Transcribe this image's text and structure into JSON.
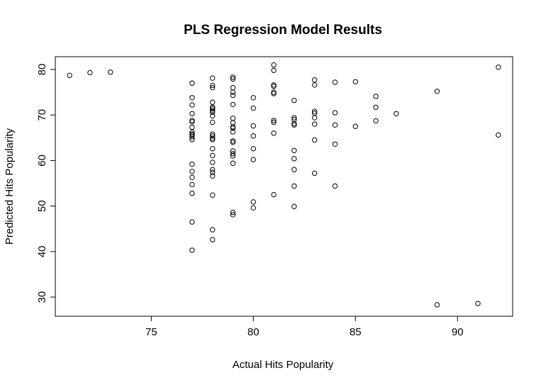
{
  "chart_data": {
    "type": "scatter",
    "title": "PLS Regression Model Results",
    "xlabel": "Actual Hits Popularity",
    "ylabel": "Predicted Hits Popularity",
    "xlim": [
      70.3,
      92.7
    ],
    "ylim": [
      25.8,
      82.8
    ],
    "xticks": [
      75,
      80,
      85,
      90
    ],
    "yticks": [
      30,
      40,
      50,
      60,
      70,
      80
    ],
    "grid": false,
    "marker": "open-circle",
    "marker_color": "#000000",
    "points": [
      [
        71,
        78.7
      ],
      [
        72,
        79.3
      ],
      [
        73,
        79.4
      ],
      [
        77,
        77.0
      ],
      [
        77,
        73.8
      ],
      [
        77,
        72.2
      ],
      [
        77,
        70.3
      ],
      [
        77,
        68.8
      ],
      [
        77,
        68.5
      ],
      [
        77,
        67.3
      ],
      [
        77,
        66.2
      ],
      [
        77,
        65.8
      ],
      [
        77,
        65.6
      ],
      [
        77,
        65.2
      ],
      [
        77,
        64.6
      ],
      [
        77,
        59.2
      ],
      [
        77,
        57.6
      ],
      [
        77,
        56.3
      ],
      [
        77,
        54.7
      ],
      [
        77,
        52.8
      ],
      [
        77,
        46.5
      ],
      [
        77,
        40.3
      ],
      [
        78,
        78.1
      ],
      [
        78,
        76.5
      ],
      [
        78,
        76.0
      ],
      [
        78,
        72.8
      ],
      [
        78,
        71.7
      ],
      [
        78,
        71.4
      ],
      [
        78,
        71.0
      ],
      [
        78,
        70.6
      ],
      [
        78,
        69.8
      ],
      [
        78,
        68.4
      ],
      [
        78,
        65.8
      ],
      [
        78,
        65.4
      ],
      [
        78,
        64.9
      ],
      [
        78,
        64.6
      ],
      [
        78,
        62.6
      ],
      [
        78,
        61.1
      ],
      [
        78,
        59.6
      ],
      [
        78,
        58.0
      ],
      [
        78,
        57.4
      ],
      [
        78,
        56.6
      ],
      [
        78,
        52.4
      ],
      [
        78,
        44.8
      ],
      [
        78,
        42.6
      ],
      [
        79,
        78.3
      ],
      [
        79,
        77.9
      ],
      [
        79,
        76.0
      ],
      [
        79,
        75.0
      ],
      [
        79,
        74.3
      ],
      [
        79,
        72.3
      ],
      [
        79,
        69.3
      ],
      [
        79,
        68.3
      ],
      [
        79,
        67.4
      ],
      [
        79,
        67.1
      ],
      [
        79,
        66.3
      ],
      [
        79,
        64.3
      ],
      [
        79,
        64.0
      ],
      [
        79,
        62.1
      ],
      [
        79,
        61.5
      ],
      [
        79,
        61.0
      ],
      [
        79,
        59.4
      ],
      [
        79,
        48.6
      ],
      [
        79,
        48.1
      ],
      [
        80,
        73.8
      ],
      [
        80,
        71.5
      ],
      [
        80,
        67.6
      ],
      [
        80,
        65.4
      ],
      [
        80,
        62.6
      ],
      [
        80,
        60.2
      ],
      [
        80,
        50.9
      ],
      [
        80,
        49.6
      ],
      [
        81,
        81.0
      ],
      [
        81,
        79.8
      ],
      [
        81,
        76.6
      ],
      [
        81,
        76.3
      ],
      [
        81,
        75.0
      ],
      [
        81,
        74.7
      ],
      [
        81,
        68.8
      ],
      [
        81,
        68.4
      ],
      [
        81,
        66.0
      ],
      [
        81,
        52.5
      ],
      [
        82,
        73.2
      ],
      [
        82,
        69.4
      ],
      [
        82,
        69.0
      ],
      [
        82,
        68.1
      ],
      [
        82,
        67.8
      ],
      [
        82,
        62.2
      ],
      [
        82,
        60.4
      ],
      [
        82,
        58.0
      ],
      [
        82,
        54.4
      ],
      [
        82,
        49.9
      ],
      [
        83,
        77.7
      ],
      [
        83,
        76.6
      ],
      [
        83,
        70.8
      ],
      [
        83,
        70.4
      ],
      [
        83,
        69.4
      ],
      [
        83,
        68.0
      ],
      [
        83,
        64.5
      ],
      [
        83,
        57.2
      ],
      [
        84,
        77.2
      ],
      [
        84,
        70.5
      ],
      [
        84,
        67.8
      ],
      [
        84,
        63.6
      ],
      [
        84,
        54.4
      ],
      [
        85,
        77.3
      ],
      [
        85,
        67.5
      ],
      [
        86,
        74.1
      ],
      [
        86,
        71.7
      ],
      [
        86,
        68.7
      ],
      [
        87,
        70.3
      ],
      [
        89,
        75.2
      ],
      [
        89,
        28.3
      ],
      [
        91,
        28.6
      ],
      [
        92,
        80.5
      ],
      [
        92,
        65.6
      ]
    ]
  }
}
